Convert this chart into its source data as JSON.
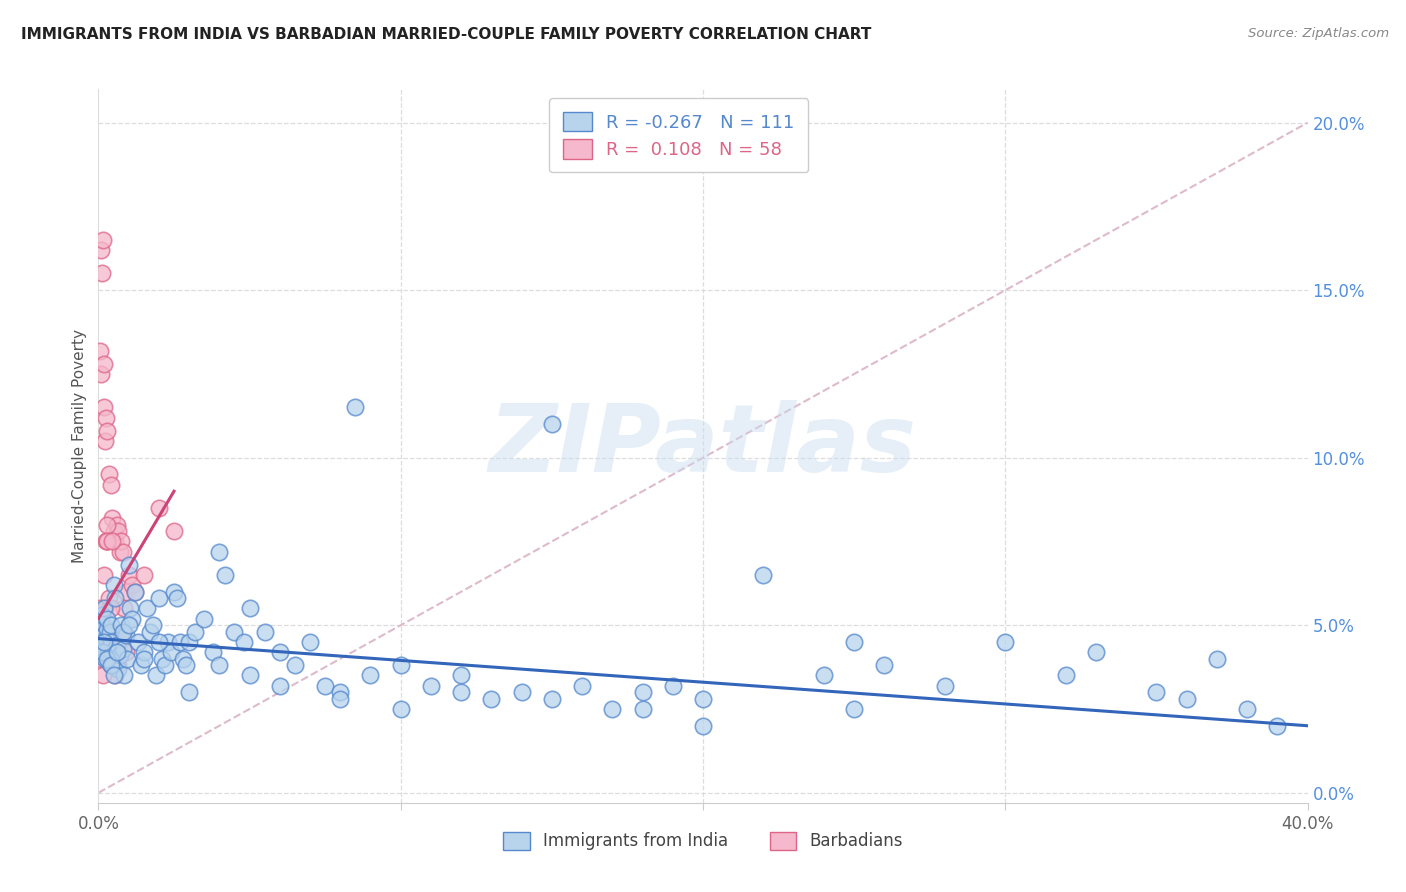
{
  "title": "IMMIGRANTS FROM INDIA VS BARBADIAN MARRIED-COUPLE FAMILY POVERTY CORRELATION CHART",
  "source": "Source: ZipAtlas.com",
  "ylabel": "Married-Couple Family Poverty",
  "right_yvalues": [
    0.0,
    5.0,
    10.0,
    15.0,
    20.0
  ],
  "xlim": [
    0,
    40
  ],
  "ylim": [
    -0.3,
    21.0
  ],
  "R_blue": -0.267,
  "N_blue": 111,
  "R_pink": 0.108,
  "N_pink": 58,
  "color_blue": "#b8d4ed",
  "color_pink": "#f5b8cc",
  "edge_blue": "#5588cc",
  "edge_pink": "#dd6688",
  "trendline_blue": "#3366bb",
  "trendline_pink": "#cc4477",
  "legend_label_blue": "Immigrants from India",
  "legend_label_pink": "Barbadians",
  "watermark": "ZIPatlas",
  "blue_trend_x0": 0,
  "blue_trend_y0": 4.6,
  "blue_trend_x1": 40,
  "blue_trend_y1": 2.0,
  "pink_trend_x0": 0.0,
  "pink_trend_y0": 5.2,
  "pink_trend_x1": 2.5,
  "pink_trend_y1": 9.0,
  "diag_color": "#ddbbcc",
  "grid_color": "#dddddd",
  "blue_x": [
    0.05,
    0.08,
    0.1,
    0.12,
    0.15,
    0.18,
    0.2,
    0.22,
    0.25,
    0.28,
    0.3,
    0.32,
    0.35,
    0.38,
    0.4,
    0.42,
    0.45,
    0.48,
    0.5,
    0.55,
    0.6,
    0.65,
    0.7,
    0.75,
    0.8,
    0.85,
    0.9,
    0.95,
    1.0,
    1.05,
    1.1,
    1.2,
    1.3,
    1.4,
    1.5,
    1.6,
    1.7,
    1.8,
    1.9,
    2.0,
    2.1,
    2.2,
    2.3,
    2.4,
    2.5,
    2.6,
    2.7,
    2.8,
    2.9,
    3.0,
    3.2,
    3.5,
    3.8,
    4.0,
    4.2,
    4.5,
    4.8,
    5.0,
    5.5,
    6.0,
    6.5,
    7.0,
    7.5,
    8.0,
    8.5,
    9.0,
    10.0,
    11.0,
    12.0,
    13.0,
    14.0,
    15.0,
    16.0,
    17.0,
    18.0,
    19.0,
    20.0,
    22.0,
    24.0,
    25.0,
    26.0,
    28.0,
    30.0,
    32.0,
    33.0,
    35.0,
    36.0,
    37.0,
    38.0,
    39.0,
    0.15,
    0.2,
    0.3,
    0.4,
    0.5,
    0.6,
    0.8,
    1.0,
    1.5,
    2.0,
    3.0,
    4.0,
    5.0,
    6.0,
    8.0,
    10.0,
    12.0,
    15.0,
    18.0,
    20.0,
    25.0
  ],
  "blue_y": [
    4.8,
    5.1,
    4.5,
    5.3,
    4.2,
    4.7,
    5.5,
    4.0,
    4.6,
    4.9,
    5.2,
    4.3,
    3.9,
    4.8,
    4.5,
    5.0,
    4.2,
    3.8,
    6.2,
    5.8,
    4.4,
    3.7,
    4.1,
    5.0,
    4.3,
    3.5,
    4.7,
    4.0,
    6.8,
    5.5,
    5.2,
    6.0,
    4.5,
    3.8,
    4.2,
    5.5,
    4.8,
    5.0,
    3.5,
    5.8,
    4.0,
    3.8,
    4.5,
    4.2,
    6.0,
    5.8,
    4.5,
    4.0,
    3.8,
    4.5,
    4.8,
    5.2,
    4.2,
    7.2,
    6.5,
    4.8,
    4.5,
    5.5,
    4.8,
    4.2,
    3.8,
    4.5,
    3.2,
    3.0,
    11.5,
    3.5,
    3.8,
    3.2,
    3.5,
    2.8,
    3.0,
    11.0,
    3.2,
    2.5,
    3.0,
    3.2,
    2.8,
    6.5,
    3.5,
    4.5,
    3.8,
    3.2,
    4.5,
    3.5,
    4.2,
    3.0,
    2.8,
    4.0,
    2.5,
    2.0,
    4.2,
    4.5,
    4.0,
    3.8,
    3.5,
    4.2,
    4.8,
    5.0,
    4.0,
    4.5,
    3.0,
    3.8,
    3.5,
    3.2,
    2.8,
    2.5,
    3.0,
    2.8,
    2.5,
    2.0,
    2.5
  ],
  "pink_x": [
    0.05,
    0.08,
    0.1,
    0.12,
    0.15,
    0.18,
    0.2,
    0.22,
    0.25,
    0.28,
    0.3,
    0.35,
    0.4,
    0.45,
    0.5,
    0.55,
    0.6,
    0.65,
    0.7,
    0.75,
    0.8,
    0.85,
    0.9,
    0.05,
    0.08,
    0.1,
    0.12,
    0.15,
    0.18,
    0.2,
    0.22,
    0.25,
    0.28,
    0.3,
    0.35,
    0.4,
    0.45,
    0.5,
    0.55,
    0.6,
    0.65,
    0.7,
    0.8,
    0.9,
    1.0,
    1.1,
    1.2,
    1.5,
    2.0,
    2.5,
    0.1,
    0.15,
    0.2,
    0.3,
    0.4,
    0.5,
    0.6,
    0.8
  ],
  "pink_y": [
    13.2,
    12.5,
    16.2,
    15.5,
    16.5,
    11.5,
    12.8,
    10.5,
    11.2,
    10.8,
    7.5,
    9.5,
    9.2,
    8.2,
    7.8,
    7.5,
    8.0,
    7.8,
    7.2,
    7.5,
    7.2,
    5.5,
    6.0,
    5.5,
    5.2,
    4.8,
    5.0,
    4.5,
    4.2,
    6.5,
    5.5,
    7.5,
    8.0,
    7.5,
    5.8,
    5.5,
    7.5,
    4.0,
    3.5,
    4.2,
    3.8,
    4.5,
    4.8,
    4.2,
    6.5,
    6.2,
    6.0,
    6.5,
    8.5,
    7.8,
    4.0,
    3.5,
    4.2,
    4.5,
    3.8,
    4.5,
    4.0,
    4.8
  ]
}
